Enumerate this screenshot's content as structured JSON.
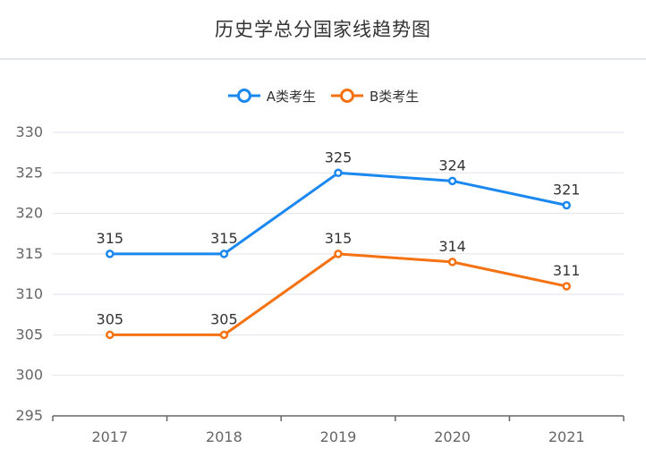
{
  "page": {
    "title": "历史学总分国家线趋势图"
  },
  "colors": {
    "seriesA": "#1a88ee",
    "seriesB": "#f57212",
    "grid": "#e0e3ea",
    "axis": "#666666"
  },
  "chart_data": {
    "type": "line",
    "title": "历史学总分国家线趋势图",
    "xlabel": "",
    "ylabel": "",
    "categories": [
      "2017",
      "2018",
      "2019",
      "2020",
      "2021"
    ],
    "series": [
      {
        "name": "A类考生",
        "values": [
          315,
          315,
          325,
          324,
          321
        ]
      },
      {
        "name": "B类考生",
        "values": [
          305,
          305,
          315,
          314,
          311
        ]
      }
    ],
    "ylim": [
      295,
      330
    ],
    "yticks": [
      "295",
      "300",
      "305",
      "310",
      "315",
      "320",
      "325",
      "330"
    ],
    "grid": true,
    "legend": "top-center",
    "data_labels": true
  }
}
